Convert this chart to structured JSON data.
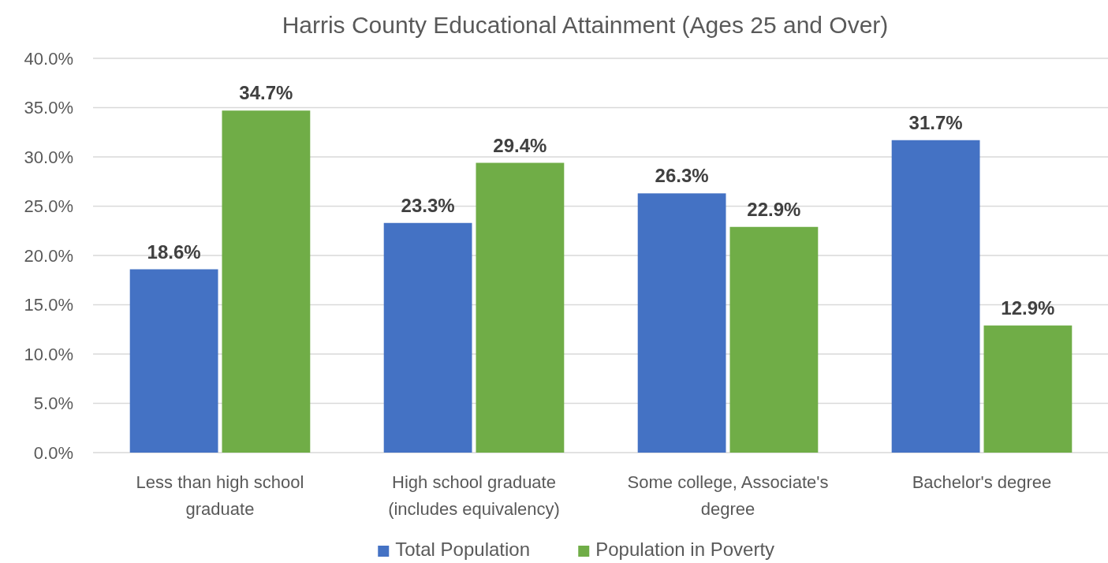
{
  "chart_data": {
    "type": "bar",
    "title": "Harris County Educational Attainment (Ages 25 and Over)",
    "categories": [
      "Less than high school graduate",
      "High school graduate (includes equivalency)",
      "Some college, Associate's degree",
      "Bachelor's degree"
    ],
    "series": [
      {
        "name": "Total Population",
        "color": "#4472c4",
        "values": [
          18.6,
          23.3,
          26.3,
          31.7
        ],
        "value_labels": [
          "18.6%",
          "23.3%",
          "26.3%",
          "31.7%"
        ]
      },
      {
        "name": "Population in Poverty",
        "color": "#70ad47",
        "values": [
          34.7,
          29.4,
          22.9,
          12.9
        ],
        "value_labels": [
          "34.7%",
          "29.4%",
          "22.9%",
          "12.9%"
        ]
      }
    ],
    "ylim": [
      0,
      40
    ],
    "yticks": [
      {
        "value": 0,
        "label": "0.0%"
      },
      {
        "value": 5,
        "label": "5.0%"
      },
      {
        "value": 10,
        "label": "10.0%"
      },
      {
        "value": 15,
        "label": "15.0%"
      },
      {
        "value": 20,
        "label": "20.0%"
      },
      {
        "value": 25,
        "label": "25.0%"
      },
      {
        "value": 30,
        "label": "30.0%"
      },
      {
        "value": 35,
        "label": "35.0%"
      },
      {
        "value": 40,
        "label": "40.0%"
      }
    ],
    "grid": "y",
    "legend": "bottom"
  }
}
